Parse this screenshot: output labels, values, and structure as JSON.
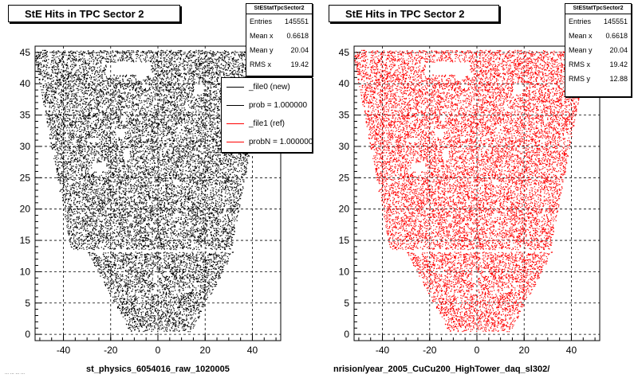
{
  "chart_data": [
    {
      "type": "scatter",
      "title": "StE Hits in TPC Sector 2",
      "xlim": [
        -52,
        52
      ],
      "ylim": [
        -1,
        46
      ],
      "x_ticks": [
        -40,
        -20,
        0,
        20,
        40
      ],
      "y_ticks": [
        0,
        5,
        10,
        15,
        20,
        25,
        30,
        35,
        40,
        45
      ],
      "grid": true,
      "marker_color": "#000000",
      "stats": {
        "title": "StEStatTpcSector2",
        "entries": [
          {
            "label": "Entries",
            "value": "145551"
          },
          {
            "label": "Mean x",
            "value": "0.6618"
          },
          {
            "label": "Mean y",
            "value": "20.04"
          },
          {
            "label": "RMS x",
            "value": "19.42"
          }
        ]
      },
      "legend": [
        {
          "label": "_file0 (new)",
          "color": "#000000"
        },
        {
          "label": "prob = 1.000000",
          "color": "#000000"
        },
        {
          "label": "_file1 (ref)",
          "color": "#ff0000"
        },
        {
          "label": "probN = 1.000000",
          "color": "#ff0000"
        }
      ],
      "footer": "st_physics_6054016_raw_1020005",
      "timestamp": "... ... ... ..."
    },
    {
      "type": "scatter",
      "title": "StE Hits in TPC Sector 2",
      "xlim": [
        -52,
        52
      ],
      "ylim": [
        -1,
        46
      ],
      "x_ticks": [
        -40,
        -20,
        0,
        20,
        40
      ],
      "y_ticks": [
        0,
        5,
        10,
        15,
        20,
        25,
        30,
        35,
        40,
        45
      ],
      "grid": true,
      "marker_color": "#ff0000",
      "stats": {
        "title": "StEStatTpcSector2",
        "entries": [
          {
            "label": "Entries",
            "value": "145551"
          },
          {
            "label": "Mean x",
            "value": "0.6618"
          },
          {
            "label": "Mean y",
            "value": "20.04"
          },
          {
            "label": "RMS x",
            "value": "19.42"
          },
          {
            "label": "RMS y",
            "value": "12.88"
          }
        ]
      },
      "footer": "nrision/year_2005_CuCu200_HighTower_daq_sl302/"
    }
  ]
}
